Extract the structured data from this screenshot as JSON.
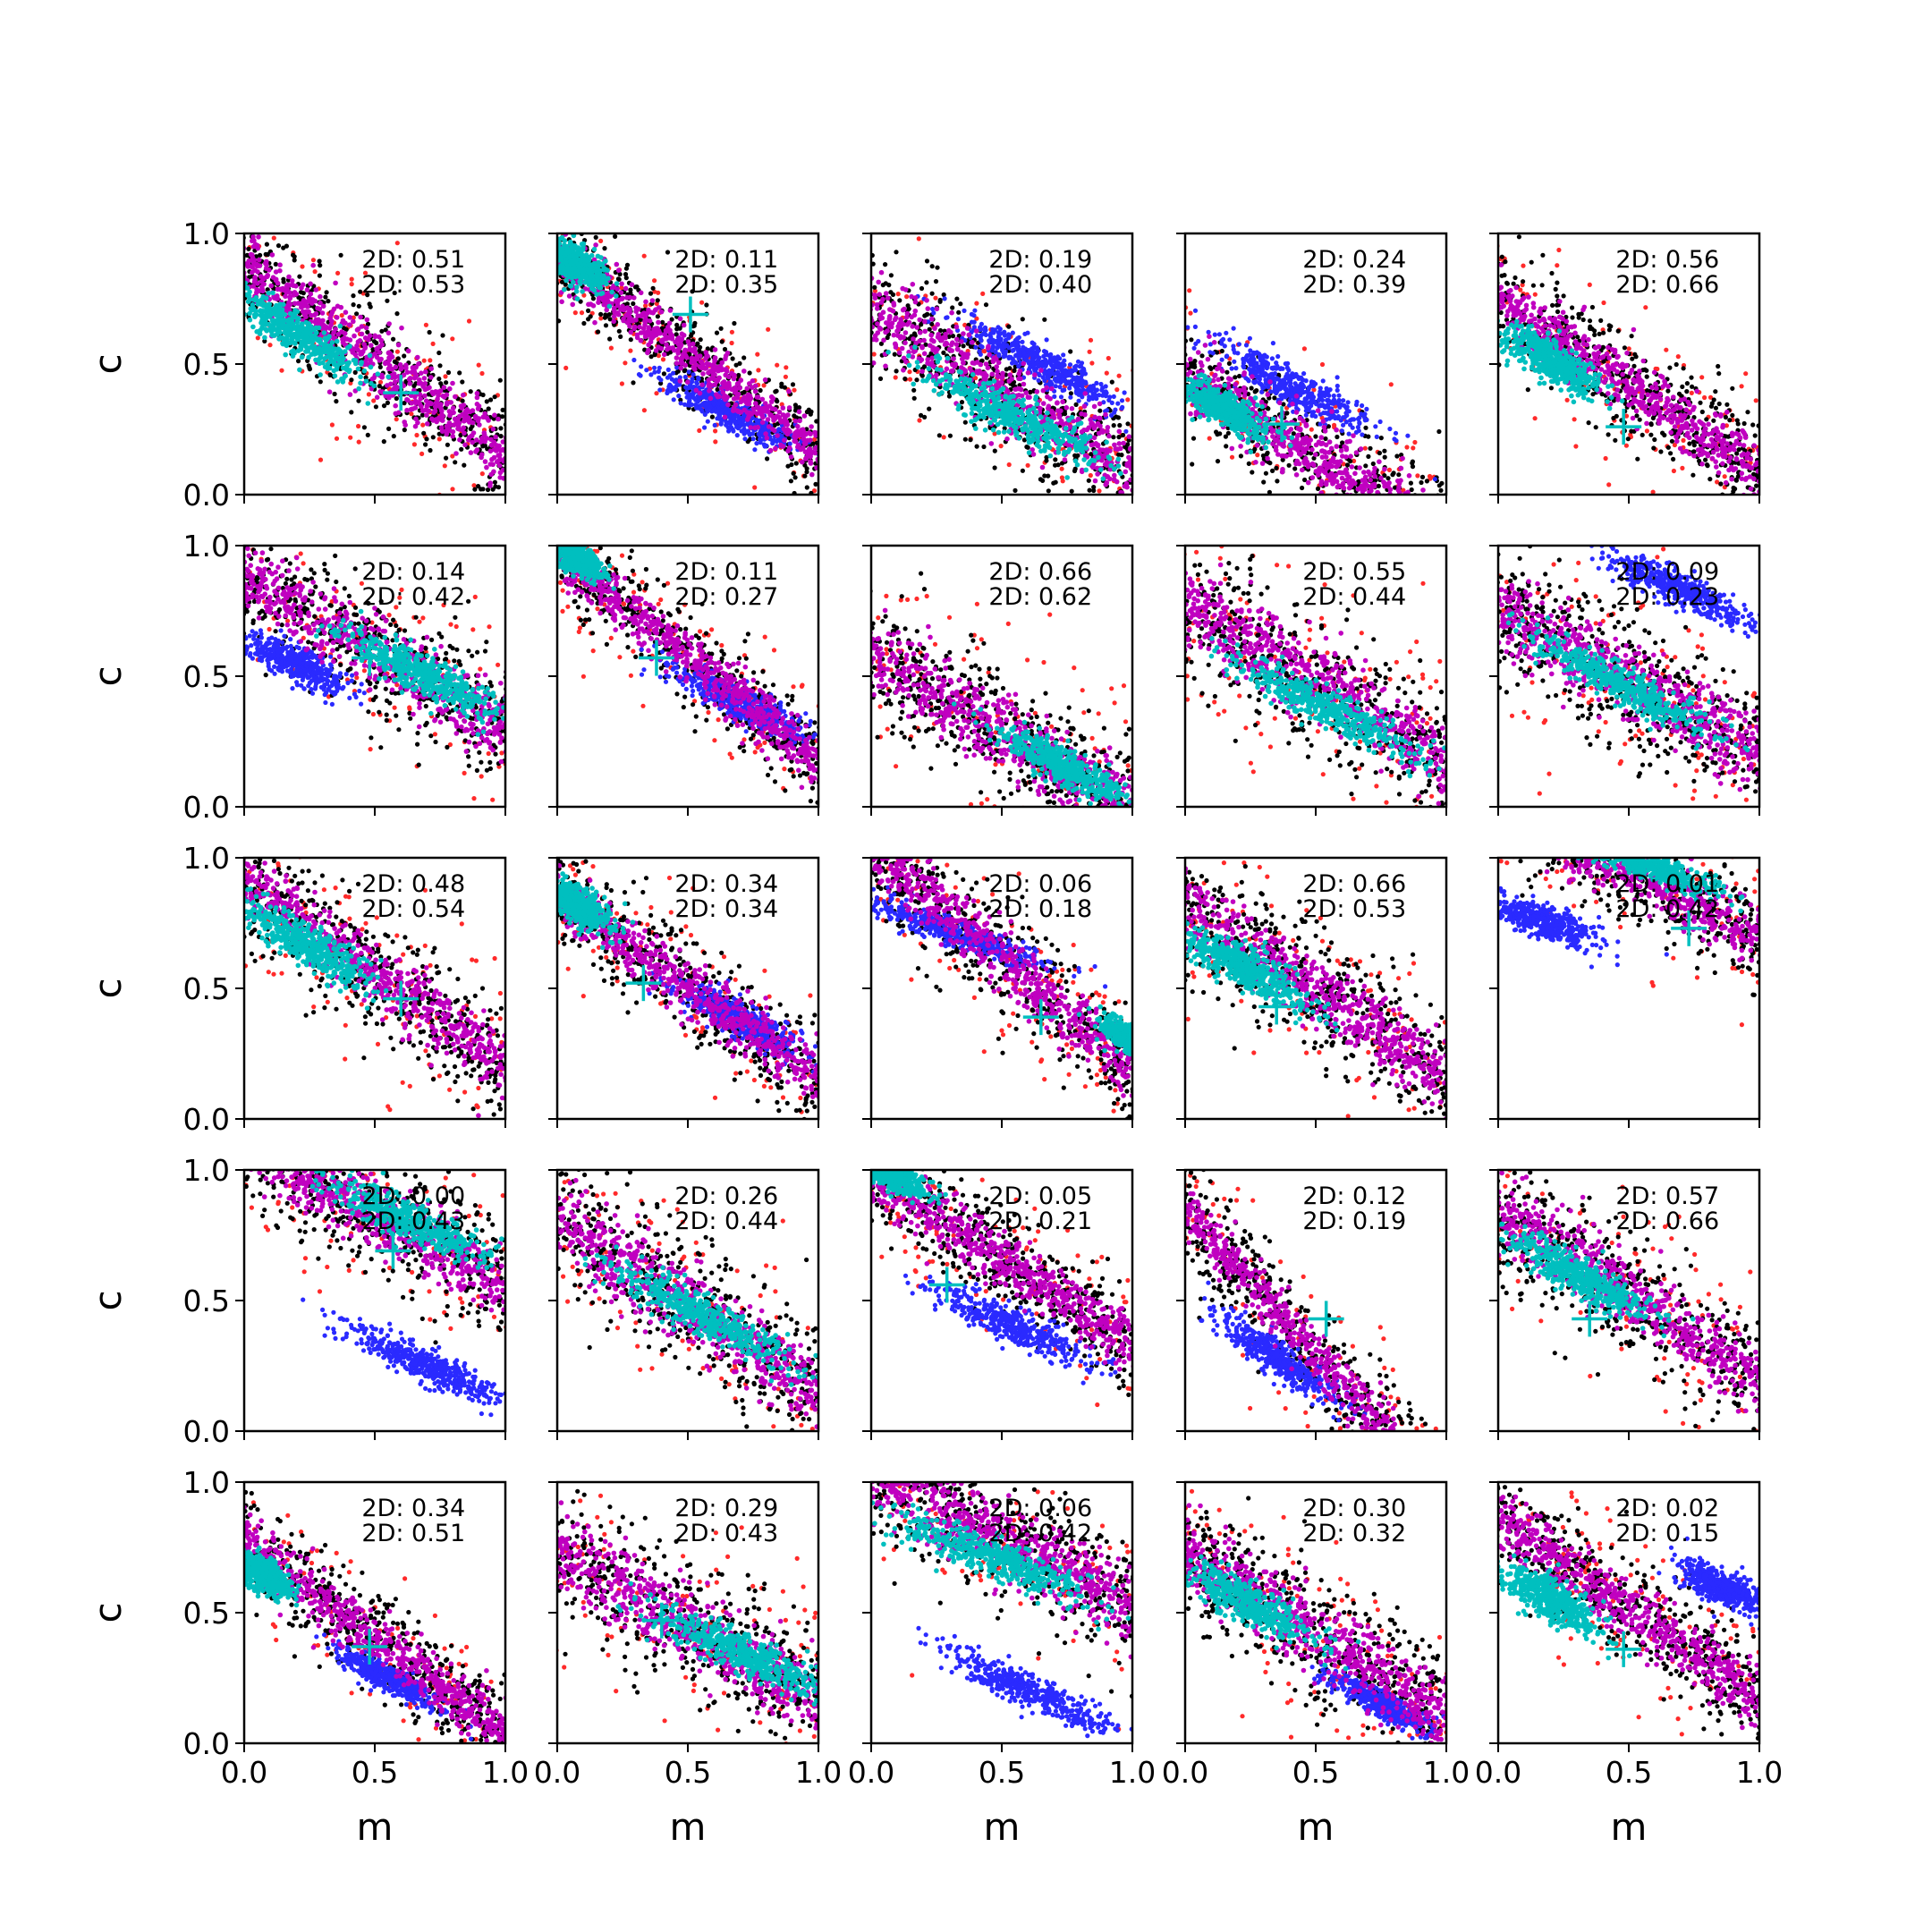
{
  "chart_data": {
    "type": "scatter",
    "title": "",
    "xlabel": "m",
    "ylabel": "c",
    "xlim": [
      0.0,
      1.0
    ],
    "ylim": [
      0.0,
      1.0
    ],
    "xticks": [
      "0.0",
      "0.5",
      "1.0"
    ],
    "yticks": [
      "0.0",
      "0.5",
      "1.0"
    ],
    "grid": false,
    "legend": "none",
    "rows": 5,
    "cols": 5,
    "colors": {
      "red": "#ff2a2a",
      "black": "#000000",
      "blue": "#2a2aff",
      "magenta": "#c000c0",
      "cyan": "#00bfbf",
      "marker": "#00bfbf"
    },
    "panels": [
      {
        "ann": [
          "2D: 0.51",
          "2D: 0.53"
        ],
        "marker": [
          0.6,
          0.39
        ],
        "band": {
          "x0": 0.35,
          "y0": 0.62,
          "slope": -0.72,
          "width": 0.15
        },
        "core": [
          0.2,
          0.62,
          0.3,
          0.07,
          -33
        ],
        "blue": null
      },
      {
        "ann": [
          "2D: 0.11",
          "2D: 0.35"
        ],
        "marker": [
          0.51,
          0.69
        ],
        "band": {
          "x0": 0.25,
          "y0": 0.72,
          "slope": -0.75,
          "width": 0.12
        },
        "core": [
          0.07,
          0.88,
          0.15,
          0.06,
          -33
        ],
        "blue": [
          0.65,
          0.32,
          0.28,
          0.06,
          -28
        ]
      },
      {
        "ann": [
          "2D: 0.19",
          "2D: 0.40"
        ],
        "marker": null,
        "band": {
          "x0": 0.5,
          "y0": 0.4,
          "slope": -0.62,
          "width": 0.17
        },
        "core": [
          0.55,
          0.3,
          0.38,
          0.07,
          -28
        ],
        "blue": [
          0.65,
          0.5,
          0.35,
          0.06,
          -28
        ]
      },
      {
        "ann": [
          "2D: 0.24",
          "2D: 0.39"
        ],
        "marker": [
          0.37,
          0.27
        ],
        "band": {
          "x0": 0.25,
          "y0": 0.3,
          "slope": -0.62,
          "width": 0.15
        },
        "core": [
          0.15,
          0.33,
          0.18,
          0.06,
          -30
        ],
        "blue": [
          0.4,
          0.42,
          0.35,
          0.07,
          -28
        ]
      },
      {
        "ann": [
          "2D: 0.56",
          "2D: 0.66"
        ],
        "marker": [
          0.48,
          0.26
        ],
        "band": {
          "x0": 0.45,
          "y0": 0.45,
          "slope": -0.65,
          "width": 0.14
        },
        "core": [
          0.2,
          0.52,
          0.2,
          0.07,
          -33
        ],
        "blue": null
      },
      {
        "ann": [
          "2D: 0.14",
          "2D: 0.42"
        ],
        "marker": [
          0.48,
          0.57
        ],
        "band": {
          "x0": 0.45,
          "y0": 0.62,
          "slope": -0.55,
          "width": 0.16
        },
        "core": [
          0.7,
          0.5,
          0.35,
          0.07,
          -28
        ],
        "blue": [
          0.2,
          0.55,
          0.22,
          0.06,
          -25
        ]
      },
      {
        "ann": [
          "2D: 0.11",
          "2D: 0.27"
        ],
        "marker": [
          0.38,
          0.57
        ],
        "band": {
          "x0": 0.2,
          "y0": 0.82,
          "slope": -0.8,
          "width": 0.12
        },
        "core": [
          0.07,
          0.95,
          0.12,
          0.05,
          -33
        ],
        "blue": [
          0.7,
          0.4,
          0.3,
          0.06,
          -28
        ]
      },
      {
        "ann": [
          "2D: 0.66",
          "2D: 0.62"
        ],
        "marker": null,
        "band": {
          "x0": 0.5,
          "y0": 0.28,
          "slope": -0.6,
          "width": 0.17
        },
        "core": [
          0.75,
          0.15,
          0.28,
          0.06,
          -28
        ],
        "blue": null
      },
      {
        "ann": [
          "2D: 0.55",
          "2D: 0.44"
        ],
        "marker": null,
        "band": {
          "x0": 0.5,
          "y0": 0.48,
          "slope": -0.6,
          "width": 0.18
        },
        "core": [
          0.55,
          0.38,
          0.4,
          0.07,
          -28
        ],
        "blue": null
      },
      {
        "ann": [
          "2D: 0.09",
          "2D: 0.23"
        ],
        "marker": null,
        "band": {
          "x0": 0.5,
          "y0": 0.48,
          "slope": -0.55,
          "width": 0.18
        },
        "core": [
          0.45,
          0.48,
          0.4,
          0.07,
          -28
        ],
        "blue": [
          0.7,
          0.83,
          0.3,
          0.06,
          -25
        ]
      },
      {
        "ann": [
          "2D: 0.48",
          "2D: 0.54"
        ],
        "marker": [
          0.6,
          0.46
        ],
        "band": {
          "x0": 0.4,
          "y0": 0.62,
          "slope": -0.7,
          "width": 0.15
        },
        "core": [
          0.22,
          0.68,
          0.3,
          0.07,
          -33
        ],
        "blue": null
      },
      {
        "ann": [
          "2D: 0.34",
          "2D: 0.34"
        ],
        "marker": [
          0.33,
          0.52
        ],
        "band": {
          "x0": 0.3,
          "y0": 0.65,
          "slope": -0.7,
          "width": 0.13
        },
        "core": [
          0.08,
          0.82,
          0.15,
          0.06,
          -33
        ],
        "blue": [
          0.7,
          0.38,
          0.25,
          0.06,
          -28
        ]
      },
      {
        "ann": [
          "2D: 0.06",
          "2D: 0.18"
        ],
        "marker": [
          0.65,
          0.39
        ],
        "band": {
          "x0": 0.75,
          "y0": 0.4,
          "slope": -0.85,
          "width": 0.14
        },
        "core": [
          1.0,
          0.3,
          0.15,
          0.05,
          -35
        ],
        "blue": [
          0.3,
          0.72,
          0.4,
          0.05,
          -20
        ]
      },
      {
        "ann": [
          "2D: 0.66",
          "2D: 0.53"
        ],
        "marker": [
          0.35,
          0.43
        ],
        "band": {
          "x0": 0.4,
          "y0": 0.55,
          "slope": -0.65,
          "width": 0.16
        },
        "core": [
          0.22,
          0.58,
          0.28,
          0.07,
          -30
        ],
        "blue": null
      },
      {
        "ann": [
          "2D: 0.01",
          "2D: 0.42"
        ],
        "marker": [
          0.73,
          0.73
        ],
        "band": {
          "x0": 0.55,
          "y0": 0.92,
          "slope": -0.5,
          "width": 0.13
        },
        "core": [
          0.55,
          0.98,
          0.35,
          0.05,
          -20
        ],
        "blue": [
          0.18,
          0.75,
          0.22,
          0.06,
          -20
        ]
      },
      {
        "ann": [
          "2D: 0.00",
          "2D: 0.43"
        ],
        "marker": [
          0.57,
          0.69
        ],
        "band": {
          "x0": 0.5,
          "y0": 0.83,
          "slope": -0.55,
          "width": 0.16
        },
        "core": [
          0.65,
          0.8,
          0.35,
          0.07,
          -25
        ],
        "blue": [
          0.7,
          0.25,
          0.35,
          0.06,
          -25
        ]
      },
      {
        "ann": [
          "2D: 0.26",
          "2D: 0.44"
        ],
        "marker": null,
        "band": {
          "x0": 0.5,
          "y0": 0.48,
          "slope": -0.65,
          "width": 0.18
        },
        "core": [
          0.55,
          0.45,
          0.4,
          0.07,
          -28
        ],
        "blue": null
      },
      {
        "ann": [
          "2D: 0.05",
          "2D: 0.21"
        ],
        "marker": [
          0.29,
          0.56
        ],
        "band": {
          "x0": 0.25,
          "y0": 0.82,
          "slope": -0.65,
          "width": 0.13
        },
        "core": [
          0.08,
          0.98,
          0.15,
          0.05,
          -28
        ],
        "blue": [
          0.55,
          0.4,
          0.32,
          0.06,
          -25
        ]
      },
      {
        "ann": [
          "2D: 0.12",
          "2D: 0.19"
        ],
        "marker": [
          0.54,
          0.43
        ],
        "band": {
          "x0": 0.22,
          "y0": 0.6,
          "slope": -1.1,
          "width": 0.13
        },
        "core": null,
        "blue": [
          0.35,
          0.28,
          0.28,
          0.06,
          -35
        ]
      },
      {
        "ann": [
          "2D: 0.57",
          "2D: 0.66"
        ],
        "marker": [
          0.35,
          0.43
        ],
        "band": {
          "x0": 0.45,
          "y0": 0.55,
          "slope": -0.65,
          "width": 0.16
        },
        "core": [
          0.3,
          0.6,
          0.3,
          0.07,
          -30
        ],
        "blue": null
      },
      {
        "ann": [
          "2D: 0.34",
          "2D: 0.51"
        ],
        "marker": [
          0.48,
          0.37
        ],
        "band": {
          "x0": 0.3,
          "y0": 0.55,
          "slope": -0.75,
          "width": 0.13
        },
        "core": [
          0.07,
          0.65,
          0.12,
          0.06,
          -35
        ],
        "blue": [
          0.55,
          0.25,
          0.22,
          0.05,
          -28
        ]
      },
      {
        "ann": [
          "2D: 0.29",
          "2D: 0.43"
        ],
        "marker": [
          0.4,
          0.47
        ],
        "band": {
          "x0": 0.5,
          "y0": 0.45,
          "slope": -0.55,
          "width": 0.18
        },
        "core": [
          0.7,
          0.35,
          0.35,
          0.07,
          -25
        ],
        "blue": null
      },
      {
        "ann": [
          "2D: 0.06",
          "2D: 0.42"
        ],
        "marker": null,
        "band": {
          "x0": 0.5,
          "y0": 0.78,
          "slope": -0.5,
          "width": 0.17
        },
        "core": [
          0.45,
          0.72,
          0.4,
          0.07,
          -22
        ],
        "blue": [
          0.6,
          0.2,
          0.35,
          0.06,
          -25
        ]
      },
      {
        "ann": [
          "2D: 0.30",
          "2D: 0.32"
        ],
        "marker": null,
        "band": {
          "x0": 0.4,
          "y0": 0.48,
          "slope": -0.65,
          "width": 0.17
        },
        "core": [
          0.25,
          0.53,
          0.3,
          0.07,
          -30
        ],
        "blue": [
          0.75,
          0.15,
          0.22,
          0.05,
          -28
        ]
      },
      {
        "ann": [
          "2D: 0.02",
          "2D: 0.15"
        ],
        "marker": [
          0.48,
          0.36
        ],
        "band": {
          "x0": 0.4,
          "y0": 0.58,
          "slope": -0.7,
          "width": 0.14
        },
        "core": [
          0.2,
          0.55,
          0.22,
          0.07,
          -33
        ],
        "blue": [
          0.85,
          0.6,
          0.18,
          0.06,
          -25
        ]
      }
    ]
  }
}
